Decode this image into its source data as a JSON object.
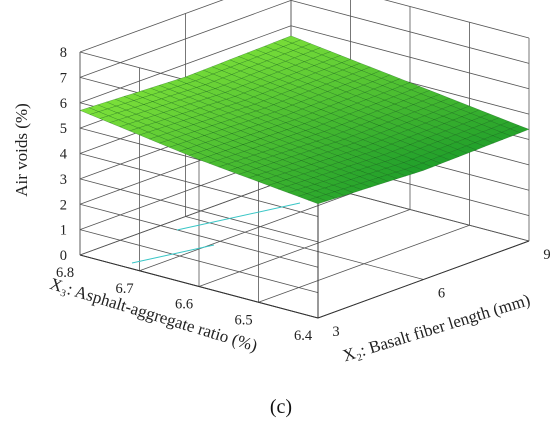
{
  "chart_data": {
    "type": "surface3d",
    "title": "",
    "caption": "(c)",
    "xlabel": "X₂: Basalt fiber length (mm)",
    "ylabel": "X₃: Asphalt-aggregate ratio (%)",
    "zlabel": "Air voids (%)",
    "xlim": [
      3,
      9
    ],
    "ylim": [
      6.4,
      6.8
    ],
    "zlim": [
      0,
      8
    ],
    "x_ticks": [
      "3",
      "6",
      "9"
    ],
    "y_ticks": [
      "6.4",
      "6.5",
      "6.6",
      "6.7",
      "6.8"
    ],
    "z_ticks": [
      "0",
      "1",
      "2",
      "3",
      "4",
      "5",
      "6",
      "7",
      "8"
    ],
    "grid": true,
    "surface_colors": {
      "high": "#7fe23a",
      "low": "#1f9e2a",
      "mesh": "#0d5a12"
    },
    "surface_grid": {
      "x": [
        3,
        6,
        9
      ],
      "y": [
        6.4,
        6.6,
        6.8
      ],
      "z": [
        [
          4.5,
          4.3,
          4.4
        ],
        [
          5.0,
          4.9,
          5.0
        ],
        [
          5.7,
          5.5,
          5.6
        ]
      ],
      "z_rows_note_order": "rows follow y, columns follow x"
    }
  }
}
